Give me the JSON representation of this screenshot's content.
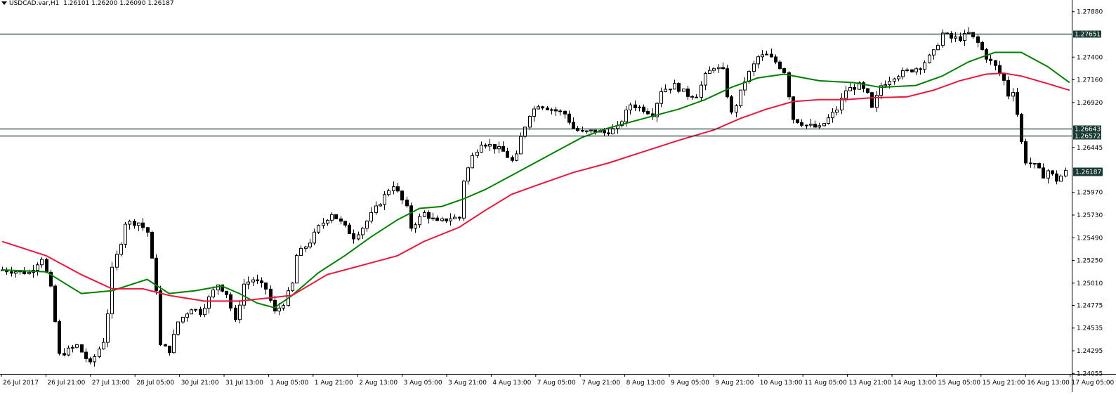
{
  "header": {
    "symbol_timeframe": "USDCAD.var,H1",
    "ohlc": "1.26101 1.26200 1.26090 1.26187"
  },
  "colors": {
    "background": "#ffffff",
    "candle": "#000000",
    "ma_fast": "#008000",
    "ma_slow": "#e8173c",
    "hline": "#1a3a34",
    "label_bg": "#1a3a34"
  },
  "chart_data": {
    "type": "candlestick",
    "title": "USDCAD.var,H1",
    "ylim": [
      1.2405,
      1.279
    ],
    "y_ticks": [
      "1.27880",
      "1.27400",
      "1.27160",
      "1.26920",
      "1.26445",
      "1.25970",
      "1.25730",
      "1.25490",
      "1.25250",
      "1.25010",
      "1.24775",
      "1.24535",
      "1.24295",
      "1.24055"
    ],
    "x_ticks": [
      "26 Jul 2017",
      "26 Jul 21:00",
      "27 Jul 13:00",
      "28 Jul 05:00",
      "30 Jul 21:00",
      "31 Jul 13:00",
      "1 Aug 05:00",
      "1 Aug 21:00",
      "2 Aug 13:00",
      "3 Aug 05:00",
      "3 Aug 21:00",
      "4 Aug 13:00",
      "7 Aug 05:00",
      "7 Aug 21:00",
      "8 Aug 13:00",
      "9 Aug 05:00",
      "9 Aug 21:00",
      "10 Aug 13:00",
      "11 Aug 05:00",
      "13 Aug 21:00",
      "14 Aug 13:00",
      "15 Aug 05:00",
      "15 Aug 21:00",
      "16 Aug 13:00",
      "17 Aug 05:00"
    ],
    "horizontal_lines": [
      {
        "value": 1.27651,
        "label": "1.27651"
      },
      {
        "value": 1.26643,
        "label": "1.26643"
      },
      {
        "value": 1.26572,
        "label": "1.26572"
      }
    ],
    "current_price": {
      "value": 1.26187,
      "label": "1.26187"
    },
    "close_path": [
      [
        0,
        1.2515
      ],
      [
        6,
        1.2512
      ],
      [
        9,
        1.2528
      ],
      [
        11,
        1.2495
      ],
      [
        13,
        1.2425
      ],
      [
        17,
        1.2435
      ],
      [
        20,
        1.2415
      ],
      [
        23,
        1.244
      ],
      [
        24,
        1.247
      ],
      [
        25,
        1.2515
      ],
      [
        27,
        1.2545
      ],
      [
        28,
        1.2565
      ],
      [
        31,
        1.2565
      ],
      [
        33,
        1.2555
      ],
      [
        35,
        1.2495
      ],
      [
        36,
        1.2435
      ],
      [
        38,
        1.243
      ],
      [
        40,
        1.246
      ],
      [
        43,
        1.2475
      ],
      [
        45,
        1.247
      ],
      [
        47,
        1.2485
      ],
      [
        49,
        1.25
      ],
      [
        51,
        1.249
      ],
      [
        53,
        1.246
      ],
      [
        55,
        1.25
      ],
      [
        57,
        1.2505
      ],
      [
        60,
        1.2495
      ],
      [
        62,
        1.247
      ],
      [
        64,
        1.248
      ],
      [
        66,
        1.25
      ],
      [
        67,
        1.253
      ],
      [
        70,
        1.2545
      ],
      [
        72,
        1.256
      ],
      [
        75,
        1.2575
      ],
      [
        78,
        1.256
      ],
      [
        80,
        1.255
      ],
      [
        82,
        1.256
      ],
      [
        85,
        1.258
      ],
      [
        88,
        1.26
      ],
      [
        89,
        1.2605
      ],
      [
        92,
        1.258
      ],
      [
        93,
        1.256
      ],
      [
        96,
        1.2575
      ],
      [
        99,
        1.2565
      ],
      [
        102,
        1.257
      ],
      [
        104,
        1.257
      ],
      [
        105,
        1.261
      ],
      [
        107,
        1.2635
      ],
      [
        109,
        1.265
      ],
      [
        112,
        1.2645
      ],
      [
        114,
        1.264
      ],
      [
        116,
        1.263
      ],
      [
        117,
        1.2635
      ],
      [
        118,
        1.2655
      ],
      [
        120,
        1.268
      ],
      [
        122,
        1.269
      ],
      [
        125,
        1.2685
      ],
      [
        128,
        1.268
      ],
      [
        130,
        1.2665
      ],
      [
        132,
        1.266
      ],
      [
        135,
        1.2662
      ],
      [
        137,
        1.266
      ],
      [
        140,
        1.2665
      ],
      [
        143,
        1.269
      ],
      [
        146,
        1.2685
      ],
      [
        148,
        1.268
      ],
      [
        150,
        1.2705
      ],
      [
        153,
        1.271
      ],
      [
        156,
        1.27
      ],
      [
        158,
        1.27
      ],
      [
        160,
        1.272
      ],
      [
        162,
        1.273
      ],
      [
        164,
        1.2725
      ],
      [
        165,
        1.27
      ],
      [
        166,
        1.268
      ],
      [
        167,
        1.269
      ],
      [
        169,
        1.2715
      ],
      [
        172,
        1.274
      ],
      [
        174,
        1.2742
      ],
      [
        176,
        1.2735
      ],
      [
        178,
        1.2725
      ],
      [
        179,
        1.27
      ],
      [
        180,
        1.2675
      ],
      [
        183,
        1.2668
      ],
      [
        186,
        1.2665
      ],
      [
        188,
        1.2675
      ],
      [
        190,
        1.2685
      ],
      [
        192,
        1.2705
      ],
      [
        195,
        1.271
      ],
      [
        197,
        1.27
      ],
      [
        198,
        1.2685
      ],
      [
        200,
        1.271
      ],
      [
        203,
        1.272
      ],
      [
        206,
        1.2725
      ],
      [
        209,
        1.273
      ],
      [
        212,
        1.2745
      ],
      [
        214,
        1.2765
      ],
      [
        216,
        1.276
      ],
      [
        218,
        1.276
      ],
      [
        220,
        1.2765
      ],
      [
        222,
        1.2755
      ],
      [
        224,
        1.274
      ],
      [
        226,
        1.273
      ],
      [
        228,
        1.2715
      ],
      [
        229,
        1.27
      ],
      [
        230,
        1.2705
      ],
      [
        231,
        1.268
      ],
      [
        232,
        1.265
      ],
      [
        233,
        1.263
      ],
      [
        235,
        1.2625
      ],
      [
        237,
        1.2615
      ],
      [
        238,
        1.262
      ],
      [
        240,
        1.261
      ],
      [
        242,
        1.26187
      ]
    ],
    "series": [
      {
        "name": "",
        "color": "#008000",
        "points": [
          [
            0,
            1.2515
          ],
          [
            10,
            1.2513
          ],
          [
            18,
            1.249
          ],
          [
            25,
            1.2493
          ],
          [
            33,
            1.2505
          ],
          [
            38,
            1.249
          ],
          [
            44,
            1.2493
          ],
          [
            50,
            1.2498
          ],
          [
            54,
            1.249
          ],
          [
            58,
            1.248
          ],
          [
            62,
            1.2475
          ],
          [
            66,
            1.2488
          ],
          [
            72,
            1.2512
          ],
          [
            78,
            1.253
          ],
          [
            84,
            1.255
          ],
          [
            90,
            1.2568
          ],
          [
            95,
            1.258
          ],
          [
            100,
            1.2582
          ],
          [
            105,
            1.259
          ],
          [
            110,
            1.26
          ],
          [
            116,
            1.2615
          ],
          [
            120,
            1.2625
          ],
          [
            126,
            1.264
          ],
          [
            132,
            1.2655
          ],
          [
            138,
            1.2665
          ],
          [
            146,
            1.2675
          ],
          [
            154,
            1.2685
          ],
          [
            160,
            1.2695
          ],
          [
            166,
            1.2708
          ],
          [
            172,
            1.2718
          ],
          [
            178,
            1.2722
          ],
          [
            186,
            1.2715
          ],
          [
            194,
            1.2713
          ],
          [
            200,
            1.2708
          ],
          [
            208,
            1.271
          ],
          [
            214,
            1.272
          ],
          [
            220,
            1.2735
          ],
          [
            226,
            1.2745
          ],
          [
            232,
            1.2745
          ],
          [
            238,
            1.273
          ],
          [
            243,
            1.2713
          ]
        ]
      },
      {
        "name": "",
        "color": "#e8173c",
        "points": [
          [
            0,
            1.2545
          ],
          [
            10,
            1.253
          ],
          [
            18,
            1.251
          ],
          [
            25,
            1.2495
          ],
          [
            32,
            1.2495
          ],
          [
            38,
            1.2488
          ],
          [
            46,
            1.2482
          ],
          [
            54,
            1.2482
          ],
          [
            60,
            1.2485
          ],
          [
            66,
            1.2488
          ],
          [
            74,
            1.251
          ],
          [
            82,
            1.252
          ],
          [
            90,
            1.253
          ],
          [
            96,
            1.2545
          ],
          [
            104,
            1.256
          ],
          [
            110,
            1.2578
          ],
          [
            116,
            1.2595
          ],
          [
            122,
            1.2605
          ],
          [
            130,
            1.2618
          ],
          [
            138,
            1.2628
          ],
          [
            146,
            1.264
          ],
          [
            154,
            1.2652
          ],
          [
            162,
            1.2663
          ],
          [
            168,
            1.2675
          ],
          [
            174,
            1.2685
          ],
          [
            180,
            1.2693
          ],
          [
            186,
            1.2695
          ],
          [
            192,
            1.2695
          ],
          [
            198,
            1.2697
          ],
          [
            206,
            1.2698
          ],
          [
            212,
            1.2705
          ],
          [
            218,
            1.2715
          ],
          [
            224,
            1.2722
          ],
          [
            228,
            1.2723
          ],
          [
            232,
            1.272
          ],
          [
            238,
            1.2712
          ],
          [
            243,
            1.2705
          ]
        ]
      }
    ]
  }
}
